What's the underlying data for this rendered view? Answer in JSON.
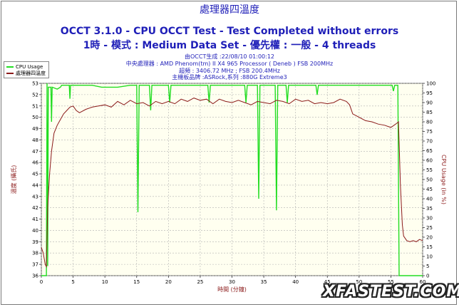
{
  "header": {
    "line1": "處理器四溫度",
    "line2": "OCCT 3.1.0 - CPU OCCT Test - Test Completed without errors",
    "line3": "1時 - 模式 : Medium Data Set - 優先權 : 一般 - 4 threads"
  },
  "info": {
    "line1": "由OCCT生成 :22/08/10 01:00:12",
    "line2": "中央處理器 : AMD Phenom(tm) II X4 965 Processor ( Deneb ) FSB 200MHz",
    "line3": "超頻 : 3406.72 MHz ; FSB 200.4MHz",
    "line4": "主機板品牌 :ASRock,系列 :880G Extreme3"
  },
  "watermark": "XFASTEST.COM",
  "colors": {
    "title": "#1f1fb8",
    "cpu_usage": "#22dd22",
    "temperature": "#8b1a1a",
    "plot_bg": "#fffff0",
    "grid": "#b0b0b0"
  },
  "chart_data": {
    "type": "line",
    "xlabel": "時間 (分鐘)",
    "ylabel_left": "溫度 (攝氏)",
    "ylabel_right": "CPU Usage (in %)",
    "xlim": [
      0,
      60
    ],
    "ylim_left": [
      36,
      53
    ],
    "ylim_right": [
      0,
      100
    ],
    "x_ticks": [
      0,
      5,
      10,
      15,
      20,
      25,
      30,
      35,
      40,
      45,
      50,
      55,
      60
    ],
    "y_left_ticks": [
      36,
      37,
      38,
      39,
      40,
      41,
      42,
      43,
      44,
      45,
      46,
      47,
      48,
      49,
      50,
      51,
      52,
      53
    ],
    "y_right_ticks": [
      0,
      5,
      10,
      15,
      20,
      25,
      30,
      35,
      40,
      45,
      50,
      55,
      60,
      65,
      70,
      75,
      80,
      85,
      90,
      95,
      100
    ],
    "grid": true,
    "legend_position": "top-left",
    "series": [
      {
        "name": "CPU Usage",
        "axis": "right",
        "points": [
          [
            0,
            0
          ],
          [
            0.8,
            0
          ],
          [
            0.9,
            100
          ],
          [
            1.0,
            5
          ],
          [
            1.1,
            98
          ],
          [
            1.5,
            98
          ],
          [
            1.6,
            80
          ],
          [
            1.7,
            98
          ],
          [
            2.5,
            97
          ],
          [
            3.0,
            98
          ],
          [
            3.2,
            99
          ],
          [
            4.4,
            99
          ],
          [
            4.5,
            92
          ],
          [
            4.6,
            99
          ],
          [
            8,
            99
          ],
          [
            9.5,
            98
          ],
          [
            10.5,
            98
          ],
          [
            12,
            98
          ],
          [
            14,
            99
          ],
          [
            15.0,
            99
          ],
          [
            15.2,
            33
          ],
          [
            15.4,
            99
          ],
          [
            17,
            99
          ],
          [
            17.2,
            86
          ],
          [
            17.4,
            99
          ],
          [
            20,
            99
          ],
          [
            20.2,
            90
          ],
          [
            20.4,
            99
          ],
          [
            26.2,
            99
          ],
          [
            26.4,
            90
          ],
          [
            26.6,
            99
          ],
          [
            30,
            99
          ],
          [
            32,
            99
          ],
          [
            32.2,
            90
          ],
          [
            32.4,
            99
          ],
          [
            34,
            99
          ],
          [
            34.2,
            40
          ],
          [
            34.4,
            99
          ],
          [
            36.8,
            99
          ],
          [
            37.0,
            34
          ],
          [
            37.2,
            99
          ],
          [
            38.5,
            99
          ],
          [
            38.7,
            90
          ],
          [
            38.9,
            99
          ],
          [
            40.5,
            99
          ],
          [
            41.5,
            99
          ],
          [
            42,
            99
          ],
          [
            43.2,
            99
          ],
          [
            43.4,
            94
          ],
          [
            43.6,
            99
          ],
          [
            47,
            99
          ],
          [
            50,
            99
          ],
          [
            53,
            99
          ],
          [
            55.2,
            99
          ],
          [
            55.4,
            96
          ],
          [
            55.6,
            99
          ],
          [
            56.1,
            99
          ],
          [
            56.3,
            0
          ],
          [
            60,
            0
          ]
        ]
      },
      {
        "name": "處理器四溫度",
        "axis": "left",
        "points": [
          [
            0,
            38.5
          ],
          [
            0.3,
            38
          ],
          [
            0.6,
            37
          ],
          [
            0.8,
            36.8
          ],
          [
            1.0,
            42
          ],
          [
            1.3,
            45
          ],
          [
            1.6,
            47
          ],
          [
            2.0,
            48.6
          ],
          [
            2.5,
            49.3
          ],
          [
            3.0,
            49.8
          ],
          [
            3.5,
            50.3
          ],
          [
            4.0,
            50.6
          ],
          [
            4.5,
            50.9
          ],
          [
            5.0,
            51.0
          ],
          [
            5.5,
            50.6
          ],
          [
            6.0,
            50.4
          ],
          [
            7.0,
            50.7
          ],
          [
            8.0,
            50.9
          ],
          [
            9.0,
            51.0
          ],
          [
            10.0,
            51.1
          ],
          [
            11.0,
            50.9
          ],
          [
            12.0,
            51.4
          ],
          [
            13.0,
            51.1
          ],
          [
            14.0,
            51.5
          ],
          [
            15.0,
            51.2
          ],
          [
            16.0,
            51.3
          ],
          [
            17.0,
            51.0
          ],
          [
            18.0,
            51.4
          ],
          [
            19.0,
            51.2
          ],
          [
            20.0,
            51.4
          ],
          [
            21.0,
            51.2
          ],
          [
            22.0,
            51.6
          ],
          [
            23.0,
            51.4
          ],
          [
            24.0,
            51.7
          ],
          [
            25.0,
            51.5
          ],
          [
            26.0,
            51.6
          ],
          [
            27.0,
            51.2
          ],
          [
            28.0,
            51.6
          ],
          [
            29.0,
            51.4
          ],
          [
            30.0,
            51.3
          ],
          [
            31.0,
            51.5
          ],
          [
            32.0,
            51.3
          ],
          [
            33.0,
            51.1
          ],
          [
            34.0,
            51.4
          ],
          [
            35.0,
            51.3
          ],
          [
            36.0,
            51.2
          ],
          [
            37.0,
            51.5
          ],
          [
            38.0,
            51.4
          ],
          [
            39.0,
            51.2
          ],
          [
            40.0,
            51.6
          ],
          [
            41.0,
            51.4
          ],
          [
            42.0,
            51.5
          ],
          [
            43.0,
            51.2
          ],
          [
            44.0,
            51.3
          ],
          [
            45.0,
            51.2
          ],
          [
            46.0,
            51.3
          ],
          [
            47.0,
            51.6
          ],
          [
            48.0,
            51.4
          ],
          [
            48.5,
            51.1
          ],
          [
            49.0,
            50.3
          ],
          [
            50.0,
            50.0
          ],
          [
            51.0,
            49.7
          ],
          [
            52.0,
            49.6
          ],
          [
            53.0,
            49.4
          ],
          [
            54.0,
            49.3
          ],
          [
            55.0,
            49.1
          ],
          [
            55.5,
            49.3
          ],
          [
            56.0,
            49.5
          ],
          [
            56.2,
            49.6
          ],
          [
            56.5,
            44
          ],
          [
            56.8,
            40.5
          ],
          [
            57.0,
            39.5
          ],
          [
            57.5,
            39.1
          ],
          [
            58.0,
            39.0
          ],
          [
            58.5,
            39.1
          ],
          [
            59.0,
            39.0
          ],
          [
            59.5,
            39.2
          ],
          [
            60.0,
            39.1
          ]
        ]
      }
    ]
  }
}
